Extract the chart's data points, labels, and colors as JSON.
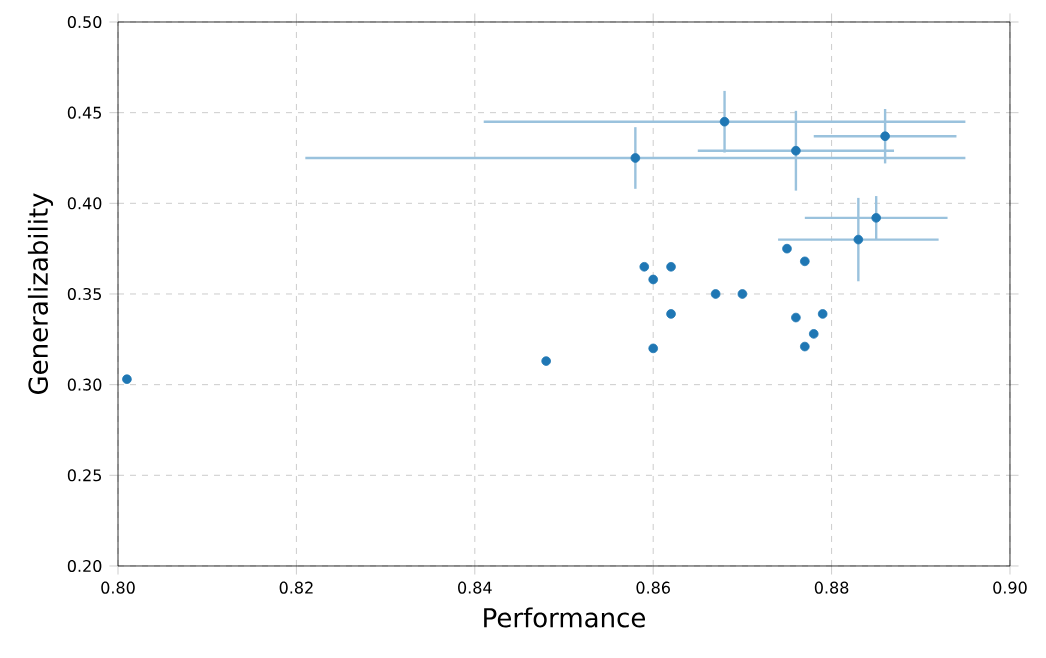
{
  "chart_data": {
    "type": "scatter",
    "xlabel": "Performance",
    "ylabel": "Generalizability",
    "x": [
      0.801,
      0.848,
      0.858,
      0.868,
      0.876,
      0.886,
      0.885,
      0.883,
      0.875,
      0.877,
      0.859,
      0.862,
      0.86,
      0.867,
      0.87,
      0.862,
      0.876,
      0.879,
      0.878,
      0.877,
      0.86
    ],
    "values": [
      0.303,
      0.313,
      0.425,
      0.445,
      0.429,
      0.437,
      0.392,
      0.38,
      0.375,
      0.368,
      0.365,
      0.365,
      0.358,
      0.35,
      0.35,
      0.339,
      0.337,
      0.339,
      0.328,
      0.321,
      0.32
    ],
    "xerrors": [
      null,
      null,
      0.037,
      0.027,
      0.011,
      0.008,
      0.008,
      0.009,
      null,
      null,
      null,
      null,
      null,
      null,
      null,
      null,
      null,
      null,
      null,
      null,
      null
    ],
    "errors": [
      null,
      null,
      0.017,
      0.017,
      0.022,
      0.015,
      0.012,
      0.023,
      null,
      null,
      null,
      null,
      null,
      null,
      null,
      null,
      null,
      null,
      null,
      null,
      null
    ],
    "color": "#1f77b4",
    "grid": true,
    "xlim": [
      0.8,
      0.9
    ],
    "ylim": [
      0.2,
      0.5
    ],
    "xticks": [
      {
        "value": 0.8,
        "label": "0.80"
      },
      {
        "value": 0.82,
        "label": "0.82"
      },
      {
        "value": 0.84,
        "label": "0.84"
      },
      {
        "value": 0.86,
        "label": "0.86"
      },
      {
        "value": 0.88,
        "label": "0.88"
      },
      {
        "value": 0.9,
        "label": "0.90"
      }
    ],
    "yticks": [
      {
        "value": 0.2,
        "label": "0.20"
      },
      {
        "value": 0.25,
        "label": "0.25"
      },
      {
        "value": 0.3,
        "label": "0.30"
      },
      {
        "value": 0.35,
        "label": "0.35"
      },
      {
        "value": 0.4,
        "label": "0.40"
      },
      {
        "value": 0.45,
        "label": "0.45"
      },
      {
        "value": 0.5,
        "label": "0.50"
      }
    ]
  }
}
